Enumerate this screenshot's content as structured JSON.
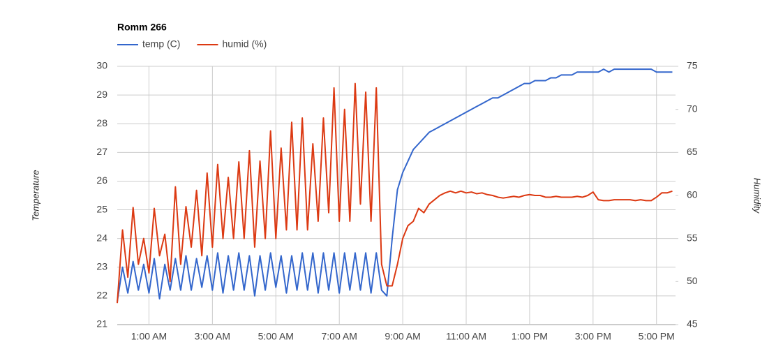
{
  "chart_data": {
    "type": "line",
    "title": "Romm 266",
    "y_label": "Temperature",
    "y2_label": "Humidity",
    "x": [
      0,
      10,
      20,
      30,
      40,
      50,
      60,
      70,
      80,
      90,
      100,
      110,
      120,
      130,
      140,
      150,
      160,
      170,
      180,
      190,
      200,
      210,
      220,
      230,
      240,
      250,
      260,
      270,
      280,
      290,
      300,
      310,
      320,
      330,
      340,
      350,
      360,
      370,
      380,
      390,
      400,
      410,
      420,
      430,
      440,
      450,
      460,
      470,
      480,
      490,
      500,
      510,
      520,
      530,
      540,
      550,
      560,
      570,
      580,
      590,
      600,
      610,
      620,
      630,
      640,
      650,
      660,
      670,
      680,
      690,
      700,
      710,
      720,
      730,
      740,
      750,
      760,
      770,
      780,
      790,
      800,
      810,
      820,
      830,
      840,
      850,
      860,
      870,
      880,
      890,
      900,
      910,
      920,
      930,
      940,
      950,
      960,
      970,
      980,
      990,
      1000,
      1010,
      1020,
      1030,
      1040,
      1050
    ],
    "series": [
      {
        "name": "temp (C)",
        "color": "#3366cc",
        "axis": "y",
        "values": [
          21.8,
          23.0,
          22.1,
          23.2,
          22.2,
          23.1,
          22.1,
          23.3,
          21.9,
          23.1,
          22.2,
          23.3,
          22.2,
          23.4,
          22.2,
          23.3,
          22.3,
          23.4,
          22.2,
          23.5,
          22.1,
          23.4,
          22.2,
          23.5,
          22.2,
          23.4,
          22.0,
          23.4,
          22.2,
          23.5,
          22.3,
          23.4,
          22.1,
          23.4,
          22.2,
          23.5,
          22.2,
          23.5,
          22.1,
          23.5,
          22.2,
          23.5,
          22.1,
          23.5,
          22.2,
          23.5,
          22.2,
          23.5,
          22.1,
          23.5,
          22.2,
          22.0,
          24.0,
          25.7,
          26.3,
          26.7,
          27.1,
          27.3,
          27.5,
          27.7,
          27.8,
          27.9,
          28.0,
          28.1,
          28.2,
          28.3,
          28.4,
          28.5,
          28.6,
          28.7,
          28.8,
          28.9,
          28.9,
          29.0,
          29.1,
          29.2,
          29.3,
          29.4,
          29.4,
          29.5,
          29.5,
          29.5,
          29.6,
          29.6,
          29.7,
          29.7,
          29.7,
          29.8,
          29.8,
          29.8,
          29.8,
          29.8,
          29.9,
          29.8,
          29.9,
          29.9,
          29.9,
          29.9,
          29.9,
          29.9,
          29.9,
          29.9,
          29.8,
          29.8,
          29.8,
          29.8
        ]
      },
      {
        "name": "humid (%)",
        "color": "#dc3912",
        "axis": "y2",
        "values": [
          47.5,
          56,
          50.5,
          58.6,
          52,
          55,
          51,
          58.5,
          53,
          55.5,
          50,
          61,
          52,
          58.7,
          54,
          60.6,
          53,
          62.6,
          54,
          63.6,
          55,
          62.1,
          55,
          63.9,
          55,
          65.2,
          54,
          64,
          55,
          67.5,
          55,
          65.5,
          56,
          68.5,
          56,
          69,
          56,
          66,
          57,
          69,
          58,
          72.5,
          57,
          70,
          57,
          73,
          59,
          72,
          57,
          72.5,
          52,
          49.5,
          49.5,
          52,
          55,
          56.5,
          57,
          58.5,
          58,
          59,
          59.5,
          60,
          60.3,
          60.5,
          60.3,
          60.5,
          60.3,
          60.4,
          60.2,
          60.3,
          60.1,
          60.0,
          59.8,
          59.7,
          59.8,
          59.9,
          59.8,
          60.0,
          60.1,
          60.0,
          60.0,
          59.8,
          59.8,
          59.9,
          59.8,
          59.8,
          59.8,
          59.9,
          59.8,
          60.0,
          60.4,
          59.5,
          59.4,
          59.4,
          59.5,
          59.5,
          59.5,
          59.5,
          59.4,
          59.5,
          59.4,
          59.4,
          59.8,
          60.3,
          60.3,
          60.5
        ]
      }
    ],
    "xlim": [
      0,
      1056
    ],
    "xticks": [
      {
        "value": 60,
        "label": "1:00 AM"
      },
      {
        "value": 180,
        "label": "3:00 AM"
      },
      {
        "value": 300,
        "label": "5:00 AM"
      },
      {
        "value": 420,
        "label": "7:00 AM"
      },
      {
        "value": 540,
        "label": "9:00 AM"
      },
      {
        "value": 660,
        "label": "11:00 AM"
      },
      {
        "value": 780,
        "label": "1:00 PM"
      },
      {
        "value": 900,
        "label": "3:00 PM"
      },
      {
        "value": 1020,
        "label": "5:00 PM"
      }
    ],
    "ylim": [
      21,
      30
    ],
    "yticks": [
      21,
      22,
      23,
      24,
      25,
      26,
      27,
      28,
      29,
      30
    ],
    "y2lim": [
      45,
      75
    ],
    "y2ticks": [
      45,
      50,
      55,
      60,
      65,
      70,
      75
    ],
    "grid": true,
    "legend": "top"
  }
}
